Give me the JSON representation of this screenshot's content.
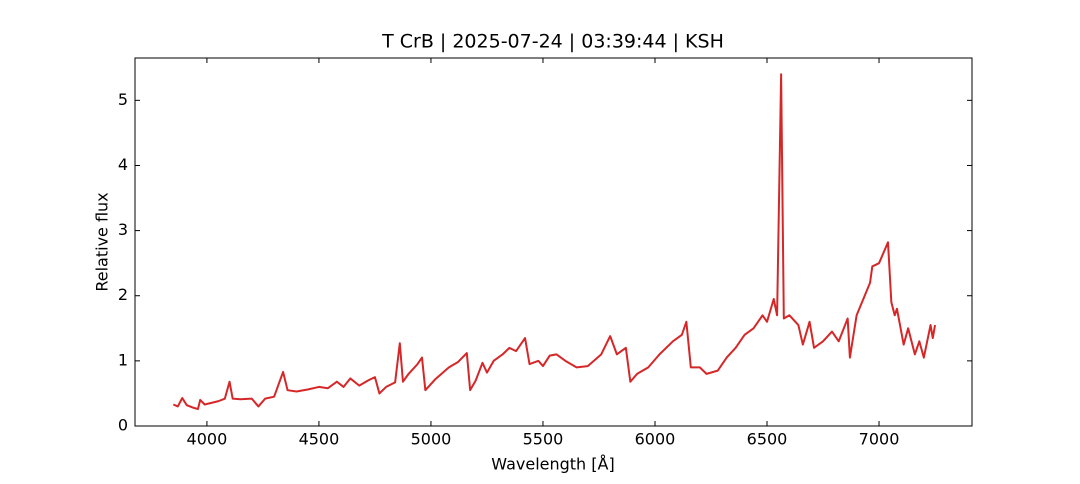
{
  "chart_data": {
    "type": "line",
    "title": "T CrB | 2025-07-24 | 03:39:44 | KSH",
    "xlabel": "Wavelength [Å]",
    "ylabel": "Relative flux",
    "color": "#d62728",
    "xlim": [
      3679,
      7415
    ],
    "ylim": [
      0,
      5.65
    ],
    "xticks": [
      4000,
      4500,
      5000,
      5500,
      6000,
      6500,
      7000
    ],
    "yticks": [
      0,
      1,
      2,
      3,
      4,
      5
    ],
    "x": [
      3850,
      3870,
      3890,
      3910,
      3940,
      3960,
      3970,
      3990,
      4050,
      4080,
      4101,
      4115,
      4150,
      4200,
      4230,
      4260,
      4300,
      4340,
      4360,
      4400,
      4450,
      4500,
      4540,
      4580,
      4610,
      4640,
      4680,
      4720,
      4750,
      4770,
      4800,
      4840,
      4861,
      4875,
      4900,
      4940,
      4960,
      4975,
      5020,
      5080,
      5120,
      5160,
      5175,
      5200,
      5230,
      5250,
      5280,
      5320,
      5350,
      5380,
      5420,
      5440,
      5480,
      5500,
      5530,
      5560,
      5600,
      5650,
      5700,
      5760,
      5800,
      5830,
      5870,
      5890,
      5920,
      5970,
      6020,
      6080,
      6120,
      6140,
      6160,
      6200,
      6230,
      6280,
      6320,
      6360,
      6400,
      6440,
      6480,
      6500,
      6530,
      6545,
      6563,
      6575,
      6600,
      6640,
      6660,
      6690,
      6710,
      6750,
      6790,
      6820,
      6860,
      6870,
      6900,
      6930,
      6960,
      6970,
      7000,
      7040,
      7055,
      7070,
      7080,
      7110,
      7130,
      7160,
      7180,
      7200,
      7230,
      7240,
      7250
    ],
    "values": [
      0.33,
      0.3,
      0.43,
      0.32,
      0.28,
      0.26,
      0.4,
      0.33,
      0.38,
      0.42,
      0.68,
      0.42,
      0.41,
      0.42,
      0.3,
      0.42,
      0.45,
      0.83,
      0.55,
      0.53,
      0.56,
      0.6,
      0.58,
      0.68,
      0.6,
      0.73,
      0.62,
      0.7,
      0.75,
      0.5,
      0.6,
      0.67,
      1.27,
      0.68,
      0.8,
      0.95,
      1.05,
      0.55,
      0.72,
      0.9,
      0.98,
      1.12,
      0.55,
      0.7,
      0.97,
      0.82,
      1.0,
      1.1,
      1.2,
      1.15,
      1.35,
      0.95,
      1.0,
      0.92,
      1.08,
      1.1,
      1.0,
      0.9,
      0.92,
      1.1,
      1.38,
      1.1,
      1.2,
      0.68,
      0.8,
      0.9,
      1.1,
      1.3,
      1.4,
      1.6,
      0.9,
      0.9,
      0.8,
      0.85,
      1.05,
      1.2,
      1.4,
      1.5,
      1.7,
      1.6,
      1.95,
      1.7,
      5.4,
      1.65,
      1.7,
      1.55,
      1.25,
      1.6,
      1.2,
      1.3,
      1.45,
      1.3,
      1.65,
      1.05,
      1.7,
      1.95,
      2.2,
      2.45,
      2.5,
      2.82,
      1.9,
      1.7,
      1.8,
      1.25,
      1.5,
      1.1,
      1.3,
      1.05,
      1.55,
      1.35,
      1.55
    ]
  }
}
